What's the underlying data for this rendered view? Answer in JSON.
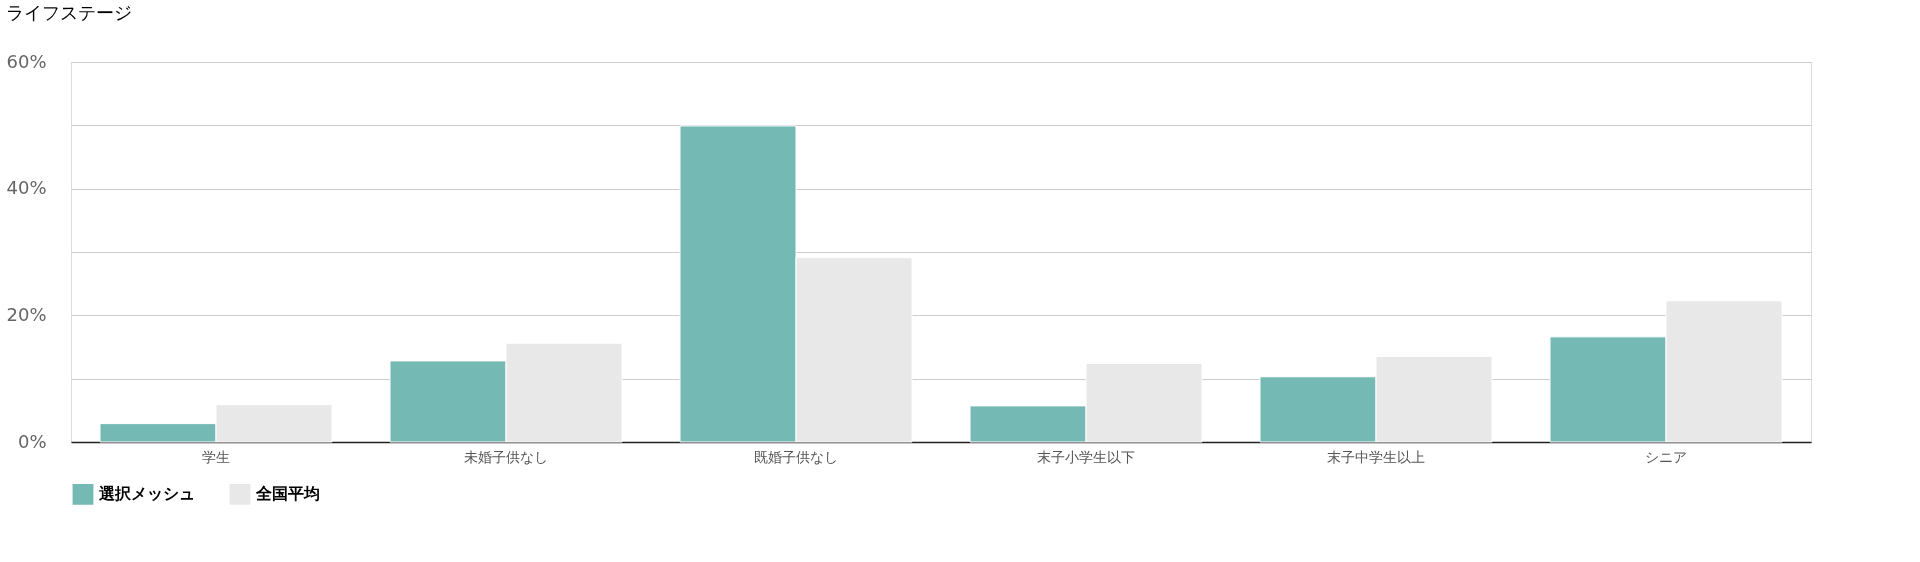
{
  "chart_data": {
    "type": "bar",
    "title": "ライフステージ",
    "categories": [
      "学生",
      "未婚子供なし",
      "既婚子供なし",
      "末子小学生以下",
      "末子中学生以上",
      "シニア"
    ],
    "series": [
      {
        "name": "選択メッシュ",
        "color": "#74b9b3",
        "values": [
          2.9,
          12.8,
          49.9,
          5.7,
          10.3,
          16.6
        ]
      },
      {
        "name": "全国平均",
        "color": "#e8e8e8",
        "values": [
          5.9,
          15.6,
          29.1,
          12.4,
          13.5,
          22.3
        ]
      }
    ],
    "ylim": [
      0,
      60
    ],
    "yticks": [
      {
        "value": 0,
        "label": "0%"
      },
      {
        "value": 10,
        "label": null
      },
      {
        "value": 20,
        "label": "20%"
      },
      {
        "value": 30,
        "label": null
      },
      {
        "value": 40,
        "label": "40%"
      },
      {
        "value": 50,
        "label": null
      },
      {
        "value": 60,
        "label": "60%"
      }
    ],
    "grid": "y",
    "legend": "bottom"
  }
}
